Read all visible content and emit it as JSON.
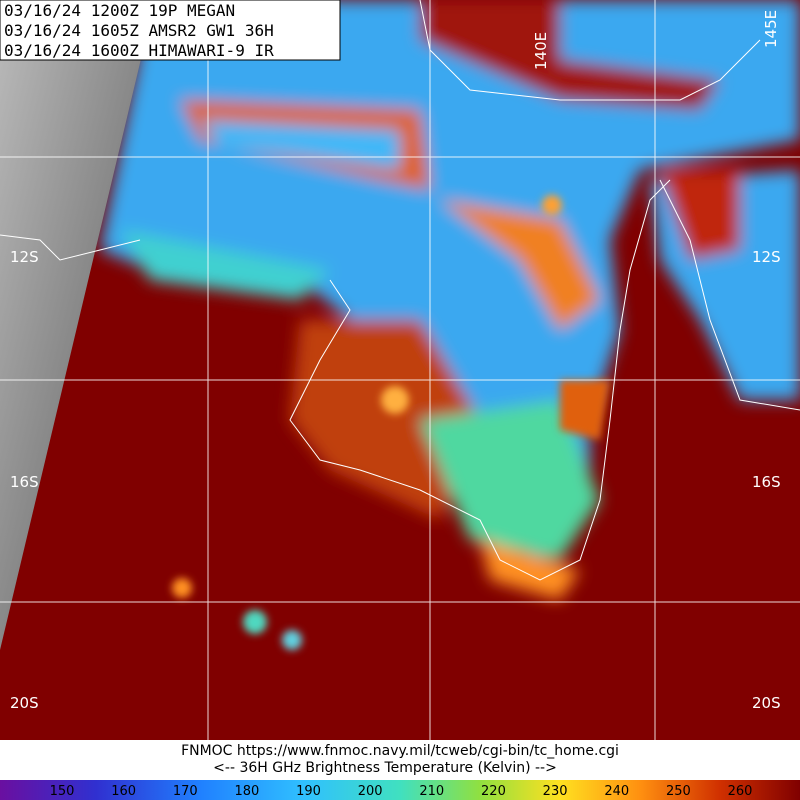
{
  "header": {
    "lines": [
      "03/16/24 1200Z  19P MEGAN",
      "03/16/24 1605Z  AMSR2 GW1 36H",
      "03/16/24 1600Z  HIMAWARI-9 IR"
    ]
  },
  "map": {
    "lat_labels": [
      "12S",
      "12S",
      "16S",
      "16S",
      "20S",
      "20S"
    ],
    "lon_labels": [
      "140E",
      "145E"
    ]
  },
  "footer": {
    "source": "FNMOC https://www.fnmoc.navy.mil/tcweb/cgi-bin/tc_home.cgi",
    "caption": "<--   36H GHz Brightness Temperature (Kelvin)   -->"
  },
  "colorbar": {
    "ticks": [
      150,
      160,
      170,
      180,
      190,
      200,
      210,
      220,
      230,
      240,
      250,
      260
    ]
  }
}
